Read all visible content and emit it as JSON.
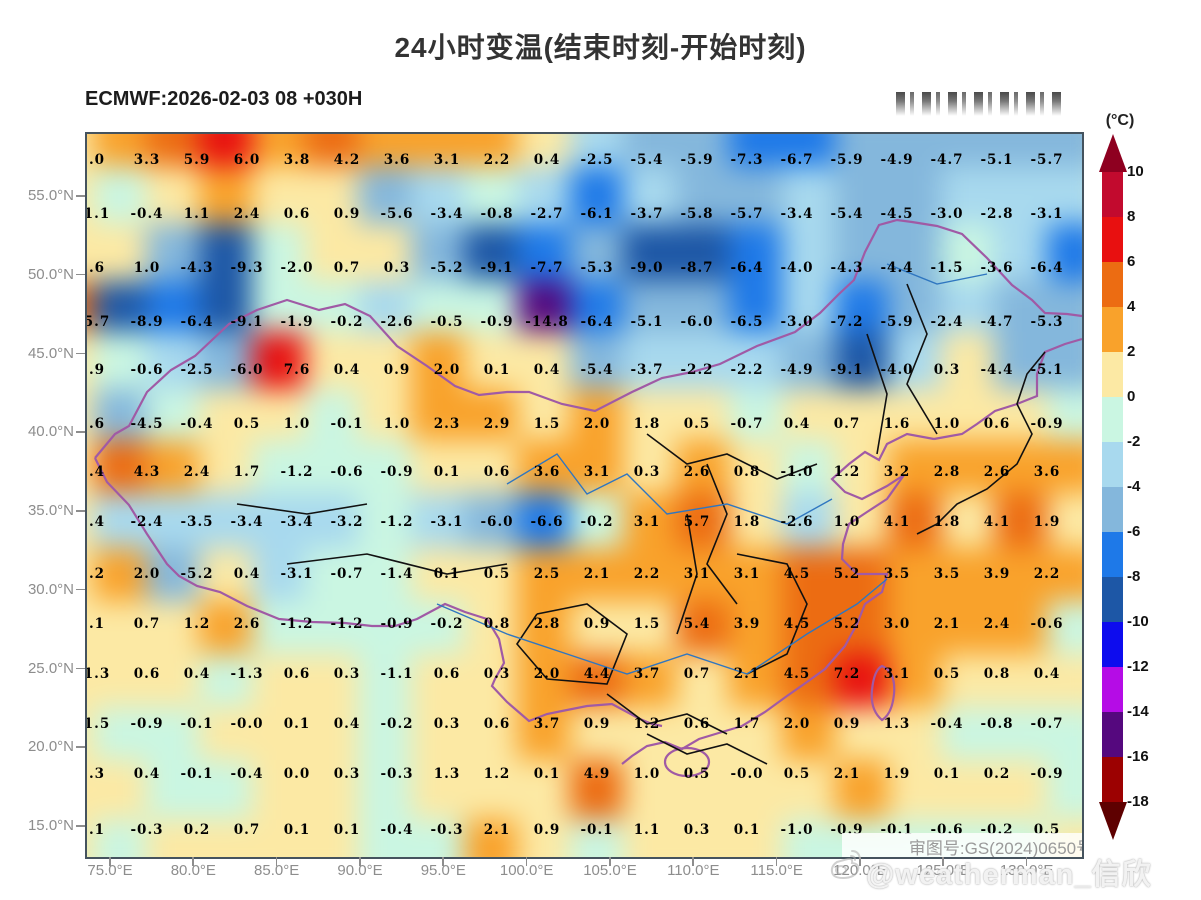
{
  "title": "24小时变温(结束时刻-开始时刻)",
  "subtitle": "ECMWF:2026-02-03 08 +030H",
  "colorbar": {
    "unit_label": "(°C)",
    "tick_labels": [
      "10",
      "8",
      "6",
      "4",
      "2",
      "0",
      "-2",
      "-4",
      "-6",
      "-8",
      "-10",
      "-12",
      "-14",
      "-16",
      "-18"
    ]
  },
  "axes": {
    "lat_labels": [
      "55.0°N",
      "50.0°N",
      "45.0°N",
      "40.0°N",
      "35.0°N",
      "30.0°N",
      "25.0°N",
      "20.0°N",
      "15.0°N"
    ],
    "lon_labels": [
      "75.0°E",
      "80.0°E",
      "85.0°E",
      "90.0°E",
      "95.0°E",
      "100.0°E",
      "105.0°E",
      "110.0°E",
      "115.0°E",
      "120.0°E",
      "125.0°E",
      "130.0°E"
    ]
  },
  "map": {
    "review_note": "审图号:GS(2024)0650号",
    "watermark": "@weatherman_信欣"
  },
  "chart_data": {
    "type": "heatmap",
    "title": "24小时变温(结束时刻-开始时刻)",
    "model_run": "ECMWF:2026-02-03 08 +030H",
    "unit": "°C",
    "x_axis_ticks": [
      "75.0°E",
      "80.0°E",
      "85.0°E",
      "90.0°E",
      "95.0°E",
      "100.0°E",
      "105.0°E",
      "110.0°E",
      "115.0°E",
      "120.0°E",
      "125.0°E",
      "130.0°E"
    ],
    "y_axis_ticks": [
      "55.0°N",
      "50.0°N",
      "45.0°N",
      "40.0°N",
      "35.0°N",
      "30.0°N",
      "25.0°N",
      "20.0°N",
      "15.0°N"
    ],
    "grid_values": [
      [
        ".0",
        "3.3",
        "5.9",
        "6.0",
        "3.8",
        "4.2",
        "3.6",
        "3.1",
        "2.2",
        "0.4",
        "-2.5",
        "-5.4",
        "-5.9",
        "-7.3",
        "-6.7",
        "-5.9",
        "-4.9",
        "-4.7",
        "-5.1",
        "-5.7"
      ],
      [
        "1.1",
        "-0.4",
        "1.1",
        "2.4",
        "0.6",
        "0.9",
        "-5.6",
        "-3.4",
        "-0.8",
        "-2.7",
        "-6.1",
        "-3.7",
        "-5.8",
        "-5.7",
        "-3.4",
        "-5.4",
        "-4.5",
        "-3.0",
        "-2.8",
        "-3.1"
      ],
      [
        ".6",
        "1.0",
        "-4.3",
        "-9.3",
        "-2.0",
        "0.7",
        "0.3",
        "-5.2",
        "-9.1",
        "-7.7",
        "-5.3",
        "-9.0",
        "-8.7",
        "-6.4",
        "-4.0",
        "-4.3",
        "-4.4",
        "-1.5",
        "-3.6",
        "-6.4"
      ],
      [
        "5.7",
        "-8.9",
        "-6.4",
        "-9.1",
        "-1.9",
        "-0.2",
        "-2.6",
        "-0.5",
        "-0.9",
        "-14.8",
        "-6.4",
        "-5.1",
        "-6.0",
        "-6.5",
        "-3.0",
        "-7.2",
        "-5.9",
        "-2.4",
        "-4.7",
        "-5.3"
      ],
      [
        ".9",
        "-0.6",
        "-2.5",
        "-6.0",
        "7.6",
        "0.4",
        "0.9",
        "2.0",
        "0.1",
        "0.4",
        "-5.4",
        "-3.7",
        "-2.2",
        "-2.2",
        "-4.9",
        "-9.1",
        "-4.0",
        "0.3",
        "-4.4",
        "-5.1"
      ],
      [
        ".6",
        "-4.5",
        "-0.4",
        "0.5",
        "1.0",
        "-0.1",
        "1.0",
        "2.3",
        "2.9",
        "1.5",
        "2.0",
        "1.8",
        "0.5",
        "-0.7",
        "0.4",
        "0.7",
        "1.6",
        "1.0",
        "0.6",
        "-0.9"
      ],
      [
        ".4",
        "4.3",
        "2.4",
        "1.7",
        "-1.2",
        "-0.6",
        "-0.9",
        "0.1",
        "0.6",
        "3.6",
        "3.1",
        "0.3",
        "2.6",
        "0.8",
        "-1.0",
        "1.2",
        "3.2",
        "2.8",
        "2.6",
        "3.6"
      ],
      [
        ".4",
        "-2.4",
        "-3.5",
        "-3.4",
        "-3.4",
        "-3.2",
        "-1.2",
        "-3.1",
        "-6.0",
        "-6.6",
        "-0.2",
        "3.1",
        "5.7",
        "1.8",
        "-2.6",
        "1.0",
        "4.1",
        "1.8",
        "4.1",
        "1.9"
      ],
      [
        ".2",
        "2.0",
        "-5.2",
        "0.4",
        "-3.1",
        "-0.7",
        "-1.4",
        "0.1",
        "0.5",
        "2.5",
        "2.1",
        "2.2",
        "3.1",
        "3.1",
        "4.5",
        "5.2",
        "3.5",
        "3.5",
        "3.9",
        "2.2"
      ],
      [
        ".1",
        "0.7",
        "1.2",
        "2.6",
        "-1.2",
        "-1.2",
        "-0.9",
        "-0.2",
        "0.8",
        "2.8",
        "0.9",
        "1.5",
        "5.4",
        "3.9",
        "4.5",
        "5.2",
        "3.0",
        "2.1",
        "2.4",
        "-0.6"
      ],
      [
        "1.3",
        "0.6",
        "0.4",
        "-1.3",
        "0.6",
        "0.3",
        "-1.1",
        "0.6",
        "0.3",
        "2.0",
        "4.4",
        "3.7",
        "0.7",
        "2.1",
        "4.5",
        "7.2",
        "3.1",
        "0.5",
        "0.8",
        "0.4"
      ],
      [
        "1.5",
        "-0.9",
        "-0.1",
        "-0.0",
        "0.1",
        "0.4",
        "-0.2",
        "0.3",
        "0.6",
        "3.7",
        "0.9",
        "1.2",
        "0.6",
        "1.7",
        "2.0",
        "0.9",
        "1.3",
        "-0.4",
        "-0.8",
        "-0.7"
      ],
      [
        ".3",
        "0.4",
        "-0.1",
        "-0.4",
        "0.0",
        "0.3",
        "-0.3",
        "1.3",
        "1.2",
        "0.1",
        "4.9",
        "1.0",
        "0.5",
        "-0.0",
        "0.5",
        "2.1",
        "1.9",
        "0.1",
        "0.2",
        "-0.9"
      ],
      [
        ".1",
        "-0.3",
        "0.2",
        "0.7",
        "0.1",
        "0.1",
        "-0.4",
        "-0.3",
        "2.1",
        "0.9",
        "-0.1",
        "1.1",
        "0.3",
        "0.1",
        "-1.0",
        "-0.9",
        "-0.1",
        "-0.6",
        "-0.2",
        "0.5"
      ]
    ],
    "scale_breaks": [
      -18,
      -16,
      -14,
      -12,
      -10,
      -8,
      -6,
      -4,
      -2,
      0,
      2,
      4,
      6,
      8,
      10
    ],
    "scale_colors_low_to_high": [
      "#5e0000",
      "#9c0101",
      "#55087e",
      "#b50ce6",
      "#0d0cee",
      "#1d57a6",
      "#1e79e8",
      "#84b7dc",
      "#a8d9ee",
      "#caf6e2",
      "#fce9a4",
      "#f9a22b",
      "#ec6c12",
      "#e81010",
      "#c20a2e",
      "#8e0020"
    ],
    "legend_position": "right",
    "grid": false
  }
}
